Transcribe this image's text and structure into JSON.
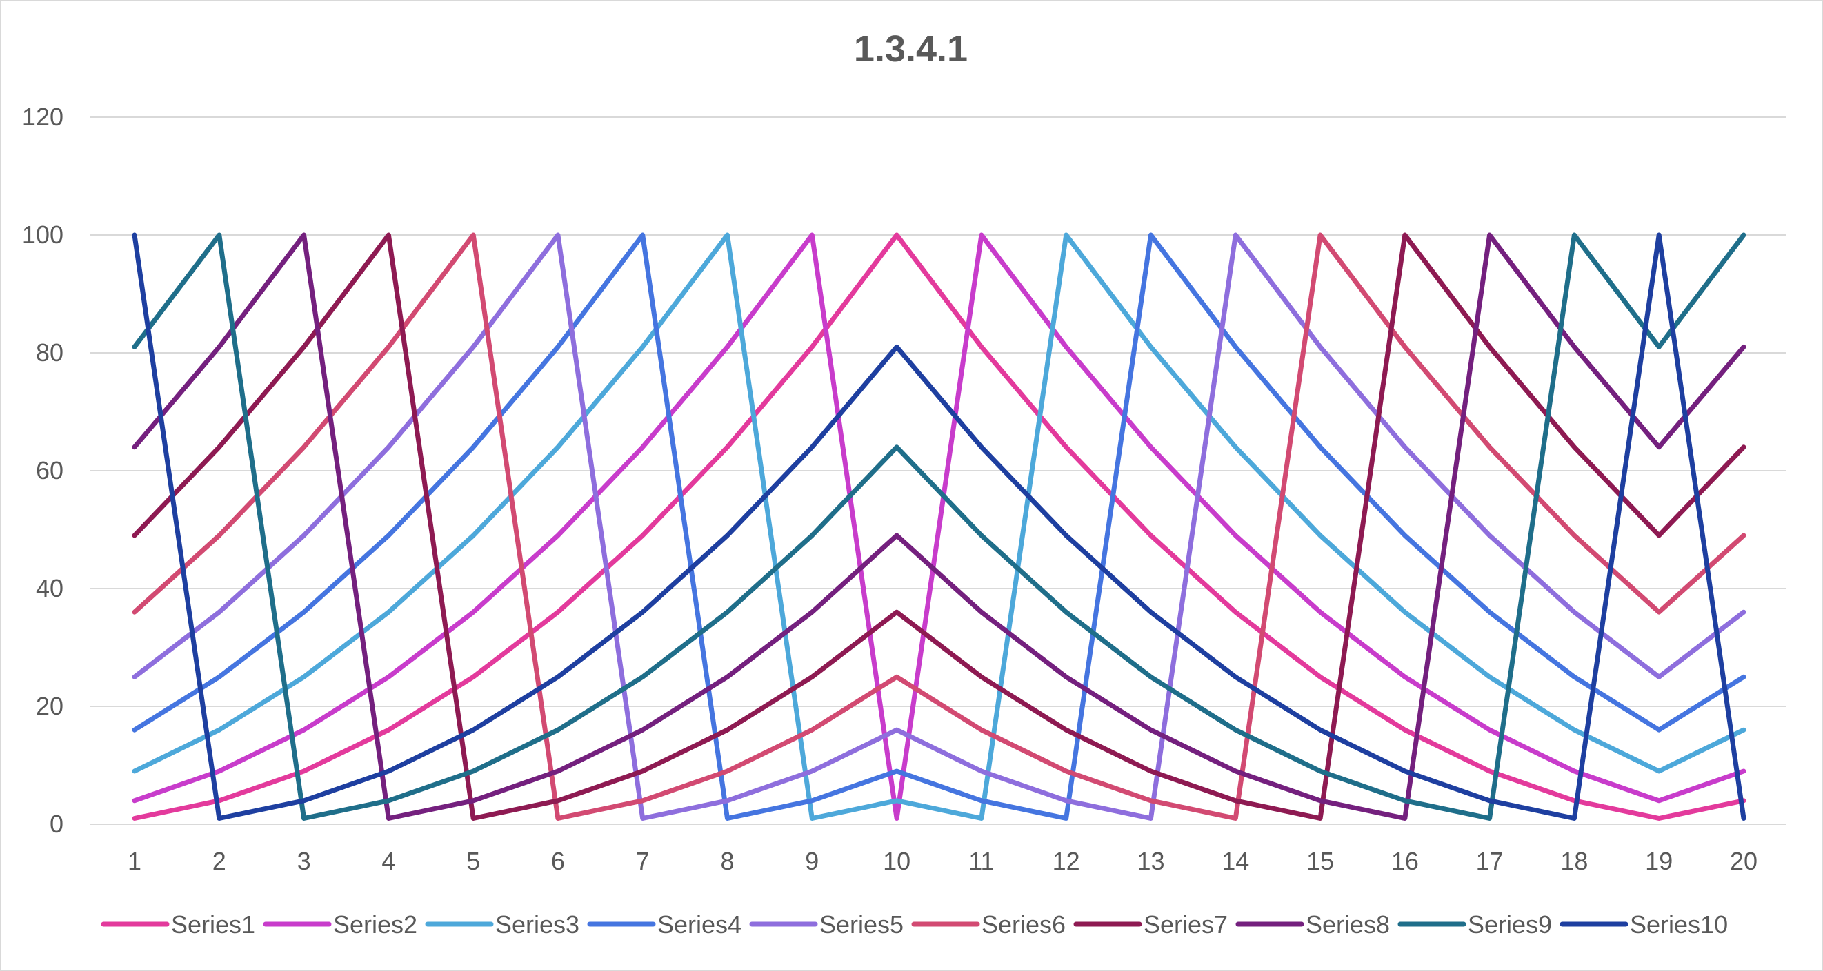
{
  "chart_data": {
    "type": "line",
    "title": "1.3.4.1",
    "xlabel": "",
    "ylabel": "",
    "x": [
      1,
      2,
      3,
      4,
      5,
      6,
      7,
      8,
      9,
      10,
      11,
      12,
      13,
      14,
      15,
      16,
      17,
      18,
      19,
      20
    ],
    "ylim": [
      0,
      120
    ],
    "yticks": [
      0,
      20,
      40,
      60,
      80,
      100,
      120
    ],
    "grid": true,
    "legend_position": "bottom",
    "series": [
      {
        "name": "Series1",
        "color": "#E33A9C",
        "values": [
          1,
          4,
          9,
          16,
          25,
          36,
          49,
          64,
          81,
          100,
          81,
          64,
          49,
          36,
          25,
          16,
          9,
          4,
          1,
          4
        ]
      },
      {
        "name": "Series2",
        "color": "#C83CCB",
        "values": [
          4,
          9,
          16,
          25,
          36,
          49,
          64,
          81,
          100,
          1,
          100,
          81,
          64,
          49,
          36,
          25,
          16,
          9,
          4,
          9
        ]
      },
      {
        "name": "Series3",
        "color": "#4DA8DA",
        "values": [
          9,
          16,
          25,
          36,
          49,
          64,
          81,
          100,
          1,
          4,
          1,
          100,
          81,
          64,
          49,
          36,
          25,
          16,
          9,
          16
        ]
      },
      {
        "name": "Series4",
        "color": "#4575E0",
        "values": [
          16,
          25,
          36,
          49,
          64,
          81,
          100,
          1,
          4,
          9,
          4,
          1,
          100,
          81,
          64,
          49,
          36,
          25,
          16,
          25
        ]
      },
      {
        "name": "Series5",
        "color": "#8E6EDD",
        "values": [
          25,
          36,
          49,
          64,
          81,
          100,
          1,
          4,
          9,
          16,
          9,
          4,
          1,
          100,
          81,
          64,
          49,
          36,
          25,
          36
        ]
      },
      {
        "name": "Series6",
        "color": "#D24A72",
        "values": [
          36,
          49,
          64,
          81,
          100,
          1,
          4,
          9,
          16,
          25,
          16,
          9,
          4,
          1,
          100,
          81,
          64,
          49,
          36,
          49
        ]
      },
      {
        "name": "Series7",
        "color": "#8E1A52",
        "values": [
          49,
          64,
          81,
          100,
          1,
          4,
          9,
          16,
          25,
          36,
          25,
          16,
          9,
          4,
          1,
          100,
          81,
          64,
          49,
          64
        ]
      },
      {
        "name": "Series8",
        "color": "#74207E",
        "values": [
          64,
          81,
          100,
          1,
          4,
          9,
          16,
          25,
          36,
          49,
          36,
          25,
          16,
          9,
          4,
          1,
          100,
          81,
          64,
          81
        ]
      },
      {
        "name": "Series9",
        "color": "#1F6E8A",
        "values": [
          81,
          100,
          1,
          4,
          9,
          16,
          25,
          36,
          49,
          64,
          49,
          36,
          25,
          16,
          9,
          4,
          1,
          100,
          81,
          100
        ]
      },
      {
        "name": "Series10",
        "color": "#1E3FA0",
        "values": [
          100,
          1,
          4,
          9,
          16,
          25,
          36,
          49,
          64,
          81,
          64,
          49,
          36,
          25,
          16,
          9,
          4,
          1,
          100,
          1
        ]
      }
    ]
  }
}
